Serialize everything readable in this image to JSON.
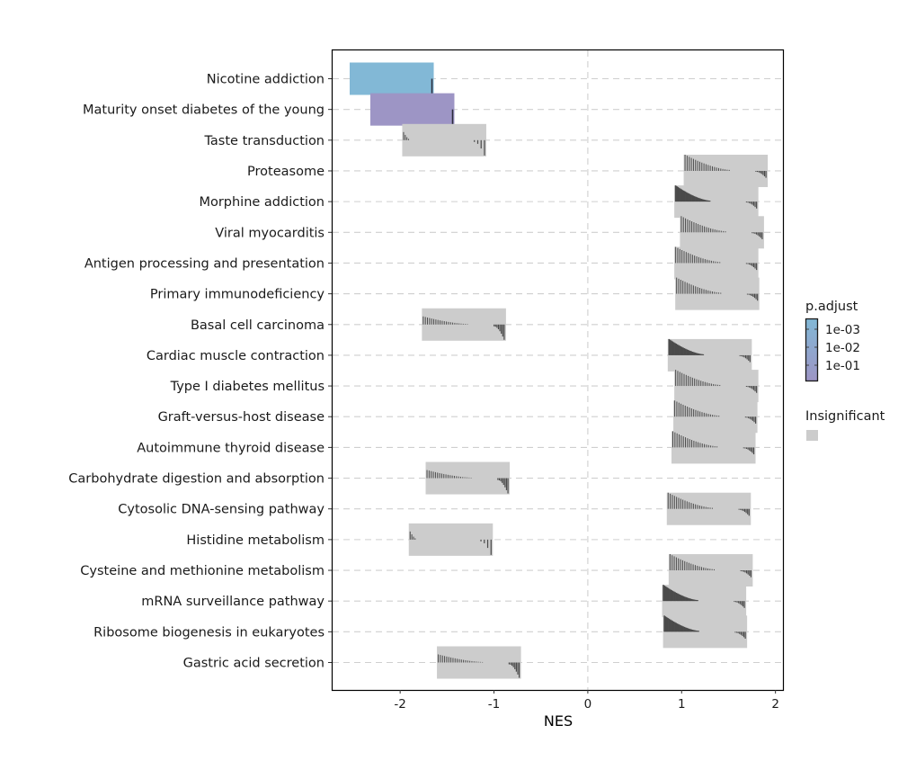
{
  "chart_data": {
    "type": "ridgeline-bar",
    "title": "",
    "xlabel": "NES",
    "ylabel": "",
    "xlim": [
      -2.72,
      2.08
    ],
    "x_ticks": [
      -2,
      -1,
      0,
      1,
      2
    ],
    "x_tick_labels": [
      "-2",
      "-1",
      "0",
      "1",
      "2"
    ],
    "grid": "horizontal dashed at each category + vertical dashed at NES=0",
    "categories": [
      "Nicotine addiction",
      "Maturity onset diabetes of the young",
      "Taste transduction",
      "Proteasome",
      "Morphine addiction",
      "Viral myocarditis",
      "Antigen processing and presentation",
      "Primary immunodeficiency",
      "Basal cell carcinoma",
      "Cardiac muscle contraction",
      "Type I diabetes mellitus",
      "Graft-versus-host disease",
      "Autoimmune thyroid disease",
      "Carbohydrate digestion and absorption",
      "Cytosolic DNA-sensing pathway",
      "Histidine metabolism",
      "Cysteine and methionine metabolism",
      "mRNA surveillance pathway",
      "Ribosome biogenesis in eukaryotes",
      "Gastric acid secretion"
    ],
    "series": [
      {
        "name": "Nicotine addiction",
        "nes": -2.09,
        "status": "significant",
        "p_adjust_color": "#82b8d6",
        "profile": "single"
      },
      {
        "name": "Maturity onset diabetes of the young",
        "nes": -1.87,
        "status": "significant",
        "p_adjust_color": "#9d95c5",
        "profile": "single"
      },
      {
        "name": "Taste transduction",
        "nes": -1.53,
        "status": "insignificant",
        "profile": "sparse"
      },
      {
        "name": "Proteasome",
        "nes": 1.47,
        "status": "insignificant",
        "profile": "bars"
      },
      {
        "name": "Morphine addiction",
        "nes": 1.37,
        "status": "insignificant",
        "profile": "dense"
      },
      {
        "name": "Viral myocarditis",
        "nes": 1.43,
        "status": "insignificant",
        "profile": "bars"
      },
      {
        "name": "Antigen processing and presentation",
        "nes": 1.37,
        "status": "insignificant",
        "profile": "bars"
      },
      {
        "name": "Primary immunodeficiency",
        "nes": 1.38,
        "status": "insignificant",
        "profile": "bars"
      },
      {
        "name": "Basal cell carcinoma",
        "nes": -1.32,
        "status": "insignificant",
        "profile": "bars"
      },
      {
        "name": "Cardiac muscle contraction",
        "nes": 1.3,
        "status": "insignificant",
        "profile": "dense"
      },
      {
        "name": "Type I diabetes mellitus",
        "nes": 1.37,
        "status": "insignificant",
        "profile": "bars"
      },
      {
        "name": "Graft-versus-host disease",
        "nes": 1.36,
        "status": "insignificant",
        "profile": "bars"
      },
      {
        "name": "Autoimmune thyroid disease",
        "nes": 1.34,
        "status": "insignificant",
        "profile": "bars"
      },
      {
        "name": "Carbohydrate digestion and absorption",
        "nes": -1.28,
        "status": "insignificant",
        "profile": "bars"
      },
      {
        "name": "Cytosolic DNA-sensing pathway",
        "nes": 1.29,
        "status": "insignificant",
        "profile": "bars"
      },
      {
        "name": "Histidine metabolism",
        "nes": -1.46,
        "status": "insignificant",
        "profile": "sparse"
      },
      {
        "name": "Cysteine and methionine metabolism",
        "nes": 1.31,
        "status": "insignificant",
        "profile": "bars"
      },
      {
        "name": "mRNA surveillance pathway",
        "nes": 1.24,
        "status": "insignificant",
        "profile": "dense"
      },
      {
        "name": "Ribosome biogenesis in eukaryotes",
        "nes": 1.25,
        "status": "insignificant",
        "profile": "dense"
      },
      {
        "name": "Gastric acid secretion",
        "nes": -1.16,
        "status": "insignificant",
        "profile": "bars"
      }
    ],
    "legend": {
      "position": "right",
      "colorbar_title": "p.adjust",
      "colorbar_labels": [
        "1e-03",
        "1e-02",
        "1e-01"
      ],
      "colorbar_colors": [
        "#82b8d6",
        "#9d95c5"
      ],
      "insignificant_label": "Insignificant",
      "insignificant_color": "#cccccc"
    }
  }
}
